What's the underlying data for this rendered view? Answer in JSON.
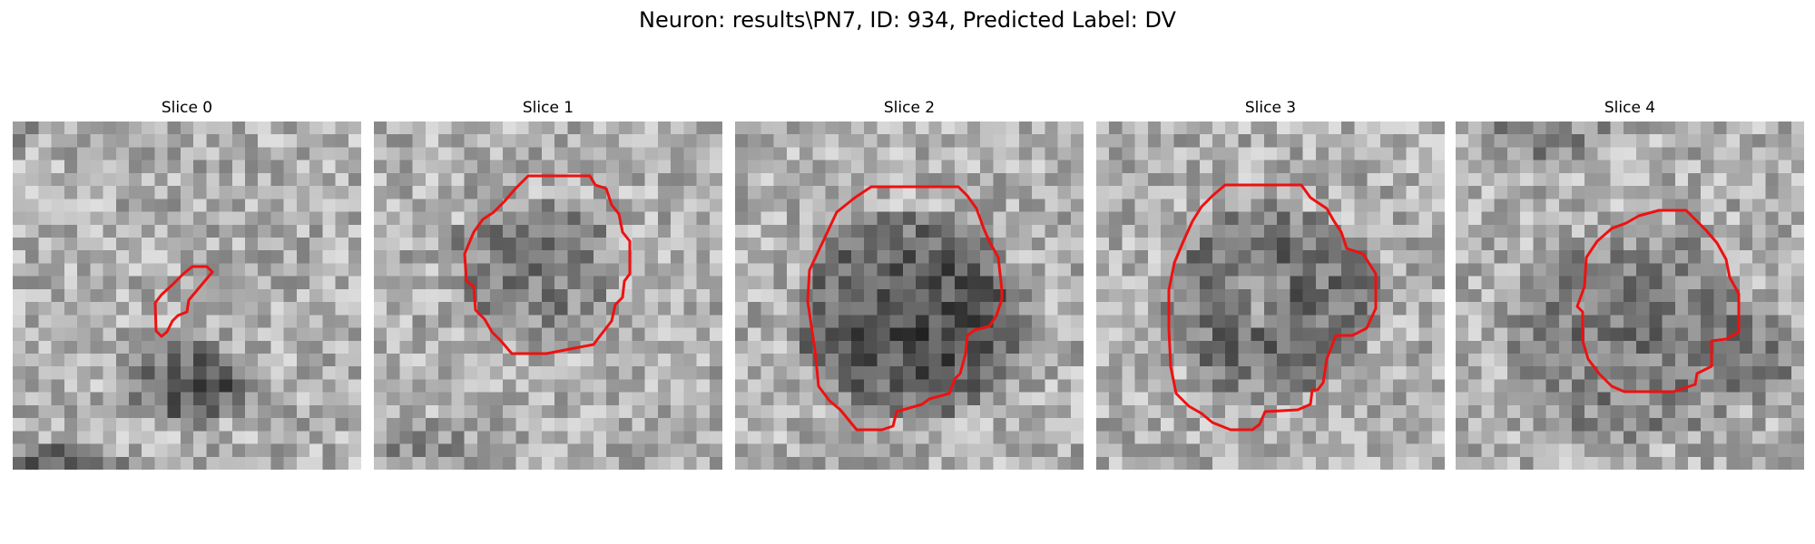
{
  "figure": {
    "title": "Neuron: results\\PN7, ID: 934, Predicted Label: DV"
  },
  "slices": [
    {
      "title": "Slice 0"
    },
    {
      "title": "Slice 1"
    },
    {
      "title": "Slice 2"
    },
    {
      "title": "Slice 3"
    },
    {
      "title": "Slice 4"
    }
  ],
  "colors": {
    "contour": "#ee1111",
    "background": "#ffffff"
  }
}
